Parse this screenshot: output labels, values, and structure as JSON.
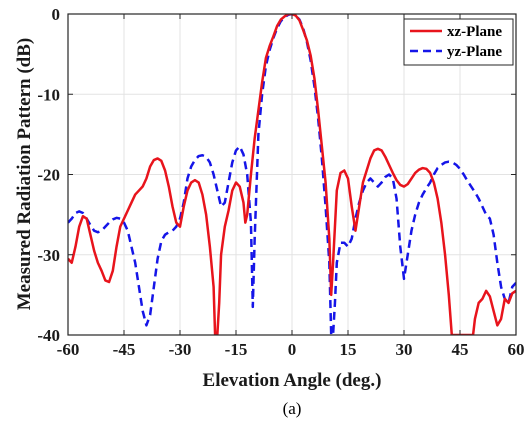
{
  "chart_data": {
    "type": "line",
    "xlabel": "Elevation Angle (deg.)",
    "ylabel": "Measured Radiation Pattern (dB)",
    "caption": "(a)",
    "xlim": [
      -60,
      60
    ],
    "ylim": [
      -40,
      0
    ],
    "xticks": [
      -60,
      -45,
      -30,
      -15,
      0,
      15,
      30,
      45,
      60
    ],
    "yticks": [
      0,
      -10,
      -20,
      -30,
      -40
    ],
    "grid": true,
    "legend_position": "top-right",
    "series": [
      {
        "name": "xz-Plane",
        "color": "#e8141c",
        "dash": "solid",
        "points": [
          [
            -60,
            -30.5
          ],
          [
            -59,
            -31
          ],
          [
            -58,
            -29
          ],
          [
            -57,
            -26.5
          ],
          [
            -56,
            -25.2
          ],
          [
            -55,
            -25.5
          ],
          [
            -54,
            -27.5
          ],
          [
            -53,
            -29.5
          ],
          [
            -52,
            -31
          ],
          [
            -51,
            -32
          ],
          [
            -50,
            -33.2
          ],
          [
            -49,
            -33.4
          ],
          [
            -48,
            -32
          ],
          [
            -47,
            -29
          ],
          [
            -46,
            -26.5
          ],
          [
            -45,
            -25.5
          ],
          [
            -44,
            -24.5
          ],
          [
            -43,
            -23.5
          ],
          [
            -42,
            -22.5
          ],
          [
            -41,
            -22
          ],
          [
            -40,
            -21.5
          ],
          [
            -39,
            -20.5
          ],
          [
            -38,
            -19
          ],
          [
            -37,
            -18.2
          ],
          [
            -36,
            -18
          ],
          [
            -35,
            -18.3
          ],
          [
            -34,
            -19.5
          ],
          [
            -33,
            -21.5
          ],
          [
            -32,
            -24
          ],
          [
            -31,
            -26
          ],
          [
            -30,
            -26.5
          ],
          [
            -29,
            -24
          ],
          [
            -28,
            -22
          ],
          [
            -27,
            -21
          ],
          [
            -26,
            -20.7
          ],
          [
            -25,
            -21
          ],
          [
            -24,
            -22.5
          ],
          [
            -23,
            -25
          ],
          [
            -22,
            -29
          ],
          [
            -21,
            -34
          ],
          [
            -20.6,
            -40
          ],
          [
            -20,
            -40
          ],
          [
            -19.5,
            -36
          ],
          [
            -19,
            -30
          ],
          [
            -18,
            -26.5
          ],
          [
            -17,
            -24.5
          ],
          [
            -16,
            -22
          ],
          [
            -15,
            -21
          ],
          [
            -14,
            -21.5
          ],
          [
            -13,
            -23.5
          ],
          [
            -12.5,
            -26
          ],
          [
            -12,
            -25
          ],
          [
            -11,
            -20
          ],
          [
            -10,
            -15.5
          ],
          [
            -9,
            -12
          ],
          [
            -8,
            -8.5
          ],
          [
            -7,
            -5.5
          ],
          [
            -6,
            -4
          ],
          [
            -5,
            -2.8
          ],
          [
            -4,
            -1.5
          ],
          [
            -3,
            -0.7
          ],
          [
            -2,
            -0.3
          ],
          [
            -1,
            0
          ],
          [
            0,
            0
          ],
          [
            1,
            -0.2
          ],
          [
            2,
            -0.8
          ],
          [
            3,
            -2
          ],
          [
            4,
            -3.3
          ],
          [
            5,
            -5.2
          ],
          [
            6,
            -8
          ],
          [
            7,
            -12
          ],
          [
            8,
            -16.5
          ],
          [
            9,
            -21
          ],
          [
            10,
            -28
          ],
          [
            10.5,
            -35
          ],
          [
            11,
            -31
          ],
          [
            12,
            -22
          ],
          [
            13,
            -19.8
          ],
          [
            14,
            -19.5
          ],
          [
            15,
            -20.5
          ],
          [
            16,
            -24
          ],
          [
            17,
            -27
          ],
          [
            18,
            -24
          ],
          [
            19,
            -21
          ],
          [
            20,
            -19.5
          ],
          [
            21,
            -18
          ],
          [
            22,
            -17
          ],
          [
            23,
            -16.8
          ],
          [
            24,
            -17
          ],
          [
            25,
            -17.8
          ],
          [
            26,
            -18.8
          ],
          [
            27,
            -19.8
          ],
          [
            28,
            -20.7
          ],
          [
            29,
            -21.3
          ],
          [
            30,
            -21.5
          ],
          [
            31,
            -21.2
          ],
          [
            32,
            -20.5
          ],
          [
            33,
            -19.8
          ],
          [
            34,
            -19.4
          ],
          [
            35,
            -19.2
          ],
          [
            36,
            -19.3
          ],
          [
            37,
            -19.8
          ],
          [
            38,
            -21
          ],
          [
            39,
            -23
          ],
          [
            40,
            -26
          ],
          [
            41,
            -30
          ],
          [
            42,
            -35
          ],
          [
            42.8,
            -40
          ],
          [
            48.5,
            -40
          ],
          [
            49,
            -38
          ],
          [
            50,
            -36
          ],
          [
            51,
            -35.5
          ],
          [
            52,
            -34.5
          ],
          [
            53,
            -35.2
          ],
          [
            54,
            -37
          ],
          [
            55,
            -38.8
          ],
          [
            56,
            -38
          ],
          [
            57,
            -35.5
          ],
          [
            58,
            -36
          ],
          [
            59,
            -34.8
          ],
          [
            60,
            -34.5
          ]
        ]
      },
      {
        "name": "yz-Plane",
        "color": "#1515e8",
        "dash": "dashed",
        "points": [
          [
            -60,
            -26
          ],
          [
            -59,
            -25.5
          ],
          [
            -58,
            -24.8
          ],
          [
            -57,
            -24.6
          ],
          [
            -56,
            -24.8
          ],
          [
            -55,
            -25.5
          ],
          [
            -54,
            -26.3
          ],
          [
            -53,
            -27
          ],
          [
            -52,
            -27.2
          ],
          [
            -51,
            -27
          ],
          [
            -50,
            -26.5
          ],
          [
            -49,
            -26
          ],
          [
            -48,
            -25.6
          ],
          [
            -47,
            -25.4
          ],
          [
            -46,
            -25.5
          ],
          [
            -45,
            -26
          ],
          [
            -44,
            -27
          ],
          [
            -43,
            -29
          ],
          [
            -42,
            -31
          ],
          [
            -41,
            -34
          ],
          [
            -40,
            -37
          ],
          [
            -39,
            -38.8
          ],
          [
            -38,
            -37.5
          ],
          [
            -37,
            -34
          ],
          [
            -36,
            -30.5
          ],
          [
            -35,
            -28.3
          ],
          [
            -34,
            -27.5
          ],
          [
            -33,
            -27.2
          ],
          [
            -32,
            -27
          ],
          [
            -31,
            -26.5
          ],
          [
            -30,
            -25.5
          ],
          [
            -29,
            -23.5
          ],
          [
            -28,
            -20.5
          ],
          [
            -27,
            -19
          ],
          [
            -26,
            -18.2
          ],
          [
            -25,
            -17.7
          ],
          [
            -24,
            -17.6
          ],
          [
            -23,
            -17.8
          ],
          [
            -22,
            -18.5
          ],
          [
            -21,
            -20
          ],
          [
            -20,
            -22
          ],
          [
            -19,
            -24
          ],
          [
            -18,
            -23.5
          ],
          [
            -17,
            -21
          ],
          [
            -16,
            -18.5
          ],
          [
            -15,
            -17
          ],
          [
            -14,
            -16.5
          ],
          [
            -13,
            -17.5
          ],
          [
            -12,
            -20
          ],
          [
            -11,
            -26
          ],
          [
            -10.5,
            -36.5
          ],
          [
            -10,
            -28
          ],
          [
            -9,
            -15
          ],
          [
            -8,
            -10
          ],
          [
            -7,
            -6.5
          ],
          [
            -6,
            -4.5
          ],
          [
            -5,
            -3
          ],
          [
            -4,
            -1.8
          ],
          [
            -3,
            -0.9
          ],
          [
            -2,
            -0.4
          ],
          [
            -1,
            -0.1
          ],
          [
            0,
            0
          ],
          [
            1,
            -0.2
          ],
          [
            2,
            -0.7
          ],
          [
            3,
            -1.8
          ],
          [
            4,
            -3.5
          ],
          [
            5,
            -5.8
          ],
          [
            6,
            -9
          ],
          [
            7,
            -13
          ],
          [
            8,
            -18
          ],
          [
            9,
            -24
          ],
          [
            10,
            -31
          ],
          [
            10.5,
            -40
          ],
          [
            11,
            -40
          ],
          [
            11.5,
            -36
          ],
          [
            12,
            -31
          ],
          [
            13,
            -28.5
          ],
          [
            14,
            -28.5
          ],
          [
            15,
            -29
          ],
          [
            16,
            -28
          ],
          [
            17,
            -25.5
          ],
          [
            18,
            -23.5
          ],
          [
            19,
            -22
          ],
          [
            20,
            -21
          ],
          [
            21,
            -20.5
          ],
          [
            22,
            -21
          ],
          [
            23,
            -21.5
          ],
          [
            24,
            -21
          ],
          [
            25,
            -20.3
          ],
          [
            26,
            -20
          ],
          [
            27,
            -20.5
          ],
          [
            28,
            -23
          ],
          [
            29,
            -29
          ],
          [
            30,
            -33
          ],
          [
            31,
            -30
          ],
          [
            32,
            -27
          ],
          [
            33,
            -25
          ],
          [
            34,
            -23.5
          ],
          [
            35,
            -22.5
          ],
          [
            36,
            -21.7
          ],
          [
            37,
            -21
          ],
          [
            38,
            -20
          ],
          [
            39,
            -19.2
          ],
          [
            40,
            -18.8
          ],
          [
            41,
            -18.5
          ],
          [
            42,
            -18.4
          ],
          [
            43,
            -18.5
          ],
          [
            44,
            -18.8
          ],
          [
            45,
            -19.3
          ],
          [
            46,
            -20
          ],
          [
            47,
            -20.8
          ],
          [
            48,
            -21.5
          ],
          [
            49,
            -22.2
          ],
          [
            50,
            -23
          ],
          [
            51,
            -24
          ],
          [
            52,
            -25
          ],
          [
            53,
            -25.5
          ],
          [
            54,
            -27.5
          ],
          [
            55,
            -31
          ],
          [
            56,
            -34
          ],
          [
            57,
            -35.5
          ],
          [
            58,
            -36
          ],
          [
            59,
            -34
          ],
          [
            60,
            -33.5
          ]
        ]
      }
    ]
  }
}
